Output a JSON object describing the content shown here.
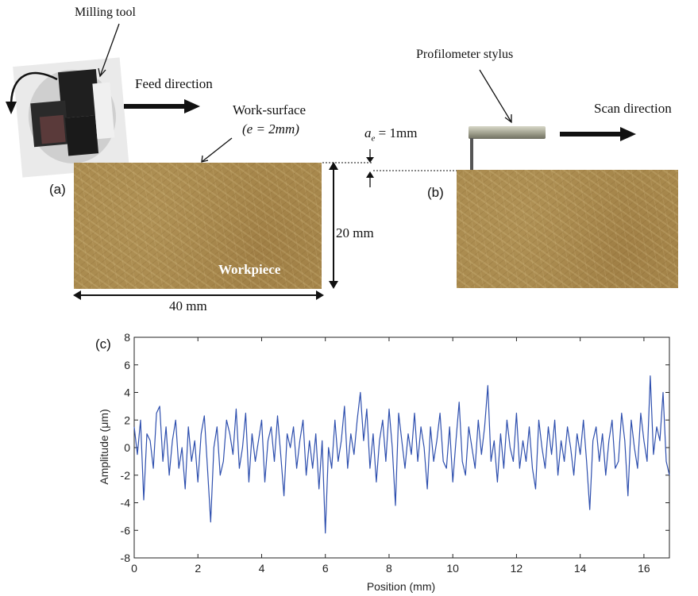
{
  "panels": {
    "a": "(a)",
    "b": "(b)",
    "c": "(c)"
  },
  "labels": {
    "milling_tool": "Milling tool",
    "feed_direction": "Feed direction",
    "work_surface": "Work-surface",
    "work_surface_e": "(e = 2mm)",
    "ae": "= 1mm",
    "profilometer_stylus": "Profilometer stylus",
    "scan_direction": "Scan direction",
    "workpiece": "Workpiece",
    "height": "20 mm",
    "width": "40 mm"
  },
  "chart_data": {
    "type": "line",
    "xlabel": "Position (mm)",
    "ylabel": "Amplitude (μm)",
    "xlim": [
      0,
      16.8
    ],
    "ylim": [
      -8,
      8
    ],
    "xticks": [
      0,
      2,
      4,
      6,
      8,
      10,
      12,
      14,
      16
    ],
    "yticks": [
      8,
      6,
      4,
      2,
      0,
      -2,
      -4,
      -6,
      -8
    ],
    "color": "#2e4fae",
    "series": [
      {
        "x": [
          0.0,
          0.1,
          0.2,
          0.3,
          0.4,
          0.5,
          0.6,
          0.7,
          0.8,
          0.9,
          1.0,
          1.1,
          1.2,
          1.3,
          1.4,
          1.5,
          1.6,
          1.7,
          1.8,
          1.9,
          2.0,
          2.1,
          2.2,
          2.3,
          2.4,
          2.5,
          2.6,
          2.7,
          2.8,
          2.9,
          3.0,
          3.1,
          3.2,
          3.3,
          3.4,
          3.5,
          3.6,
          3.7,
          3.8,
          3.9,
          4.0,
          4.1,
          4.2,
          4.3,
          4.4,
          4.5,
          4.6,
          4.7,
          4.8,
          4.9,
          5.0,
          5.1,
          5.2,
          5.3,
          5.4,
          5.5,
          5.6,
          5.7,
          5.8,
          5.9,
          6.0,
          6.1,
          6.2,
          6.3,
          6.4,
          6.5,
          6.6,
          6.7,
          6.8,
          6.9,
          7.0,
          7.1,
          7.2,
          7.3,
          7.4,
          7.5,
          7.6,
          7.7,
          7.8,
          7.9,
          8.0,
          8.1,
          8.2,
          8.3,
          8.4,
          8.5,
          8.6,
          8.7,
          8.8,
          8.9,
          9.0,
          9.1,
          9.2,
          9.3,
          9.4,
          9.5,
          9.6,
          9.7,
          9.8,
          9.9,
          10.0,
          10.1,
          10.2,
          10.3,
          10.4,
          10.5,
          10.6,
          10.7,
          10.8,
          10.9,
          11.0,
          11.1,
          11.2,
          11.3,
          11.4,
          11.5,
          11.6,
          11.7,
          11.8,
          11.9,
          12.0,
          12.1,
          12.2,
          12.3,
          12.4,
          12.5,
          12.6,
          12.7,
          12.8,
          12.9,
          13.0,
          13.1,
          13.2,
          13.3,
          13.4,
          13.5,
          13.6,
          13.7,
          13.8,
          13.9,
          14.0,
          14.1,
          14.2,
          14.3,
          14.4,
          14.5,
          14.6,
          14.7,
          14.8,
          14.9,
          15.0,
          15.1,
          15.2,
          15.3,
          15.4,
          15.5,
          15.6,
          15.7,
          15.8,
          15.9,
          16.0,
          16.1,
          16.2,
          16.3,
          16.4,
          16.5,
          16.6,
          16.7,
          16.8
        ],
        "values": [
          1.5,
          -0.5,
          2.0,
          -3.8,
          1.0,
          0.5,
          -1.5,
          2.5,
          3.0,
          -1.0,
          1.5,
          -2.0,
          0.5,
          2.0,
          -1.5,
          0.0,
          -3.0,
          1.5,
          -1.0,
          0.5,
          -2.5,
          1.0,
          2.3,
          -1.5,
          -5.4,
          0.0,
          1.5,
          -2.0,
          -1.0,
          2.0,
          1.0,
          -0.5,
          2.8,
          -1.5,
          0.0,
          2.5,
          -2.5,
          1.0,
          -1.0,
          0.5,
          2.0,
          -2.5,
          0.5,
          1.5,
          -1.0,
          2.3,
          -0.5,
          -3.5,
          1.0,
          0.0,
          1.5,
          -1.5,
          0.5,
          2.0,
          -2.0,
          0.5,
          -1.5,
          1.0,
          -3.0,
          0.5,
          -6.2,
          0.0,
          -1.5,
          2.0,
          -1.0,
          0.5,
          3.0,
          -1.5,
          1.0,
          -0.5,
          2.0,
          4.0,
          0.5,
          2.8,
          -1.5,
          1.0,
          -2.5,
          0.5,
          2.0,
          -1.0,
          2.8,
          0.0,
          -4.2,
          2.5,
          0.5,
          -1.5,
          1.0,
          -0.5,
          2.5,
          -1.0,
          1.5,
          0.0,
          -3.0,
          1.5,
          -1.0,
          0.5,
          2.5,
          -1.0,
          -1.5,
          1.5,
          -2.5,
          0.5,
          3.3,
          -1.0,
          -2.0,
          1.5,
          0.0,
          -1.5,
          2.0,
          -0.5,
          1.5,
          4.5,
          -1.0,
          0.5,
          -2.5,
          1.0,
          -1.5,
          2.0,
          0.0,
          -1.0,
          2.5,
          -1.5,
          0.5,
          -1.0,
          1.5,
          -1.5,
          -3.0,
          2.0,
          0.0,
          -1.5,
          1.5,
          -0.5,
          2.0,
          -2.0,
          0.5,
          -1.0,
          1.5,
          0.0,
          -2.0,
          1.0,
          -0.5,
          2.0,
          -1.0,
          -4.5,
          0.5,
          1.5,
          -1.0,
          1.0,
          -2.0,
          0.5,
          2.0,
          -1.5,
          -1.0,
          2.5,
          0.5,
          -3.5,
          2.0,
          0.0,
          -1.5,
          2.5,
          0.5,
          -1.0,
          5.2,
          -0.5,
          1.5,
          0.5,
          4.0,
          -1.0,
          -2.0
        ]
      }
    ]
  }
}
